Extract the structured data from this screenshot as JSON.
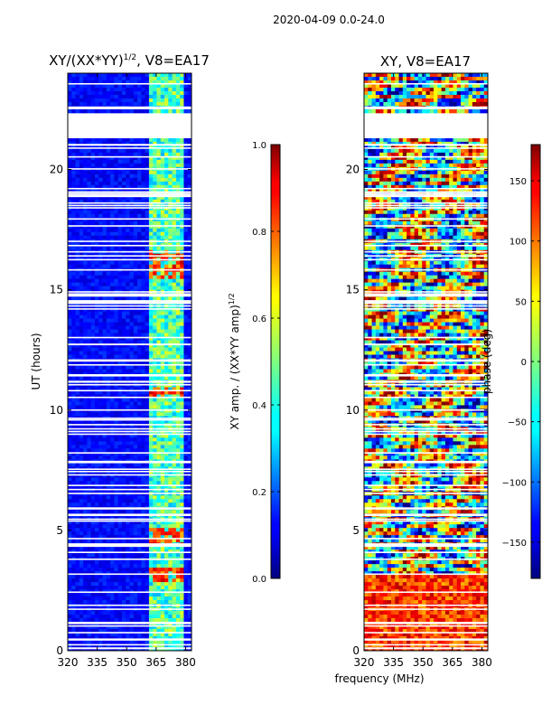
{
  "chart_data": [
    {
      "type": "heatmap",
      "title_main": "XY/(XX*YY)",
      "title_exp": "1/2",
      "title_suffix": ", V8=EA17",
      "ylabel": "UT (hours)",
      "xlim": [
        320,
        383
      ],
      "ylim": [
        0,
        24
      ],
      "xticks": [
        "320",
        "335",
        "350",
        "365",
        "380"
      ],
      "xtick_values": [
        320,
        335,
        350,
        365,
        380
      ],
      "yticks": [
        "0",
        "5",
        "10",
        "15",
        "20"
      ],
      "ytick_values": [
        0,
        5,
        10,
        15,
        20
      ],
      "gap_hours": [
        21.3,
        22.3
      ],
      "colorbar": {
        "label_main": "XY amp. / (XX*YY amp)",
        "label_exp": "1/2",
        "range": [
          0.0,
          1.0
        ],
        "ticks": [
          "0.0",
          "0.2",
          "0.4",
          "0.6",
          "0.8",
          "1.0"
        ],
        "tick_values": [
          0.0,
          0.2,
          0.4,
          0.6,
          0.8,
          1.0
        ]
      }
    },
    {
      "type": "heatmap",
      "title": "XY, V8=EA17",
      "xlim": [
        320,
        383
      ],
      "ylim": [
        0,
        24
      ],
      "xticks": [
        "320",
        "335",
        "350",
        "365",
        "380"
      ],
      "xtick_values": [
        320,
        335,
        350,
        365,
        380
      ],
      "yticks": [
        "0",
        "5",
        "10",
        "15",
        "20"
      ],
      "ytick_values": [
        0,
        5,
        10,
        15,
        20
      ],
      "gap_hours": [
        21.3,
        22.3
      ],
      "colorbar": {
        "label": "phase (deg)",
        "range": [
          -180,
          180
        ],
        "ticks": [
          "−150",
          "−100",
          "−50",
          "0",
          "50",
          "100",
          "150"
        ],
        "tick_values": [
          -150,
          -100,
          -50,
          0,
          50,
          100,
          150
        ]
      }
    }
  ],
  "suptitle": "2020-04-09 0.0-24.0",
  "xlabel": "frequency (MHz)",
  "colors": {
    "jet_dark_blue": "#00007f",
    "jet_blue": "#0000ff",
    "jet_cyan": "#00ffff",
    "jet_yellow": "#ffff00",
    "jet_red": "#ff0000",
    "jet_dark_red": "#7f0000"
  }
}
